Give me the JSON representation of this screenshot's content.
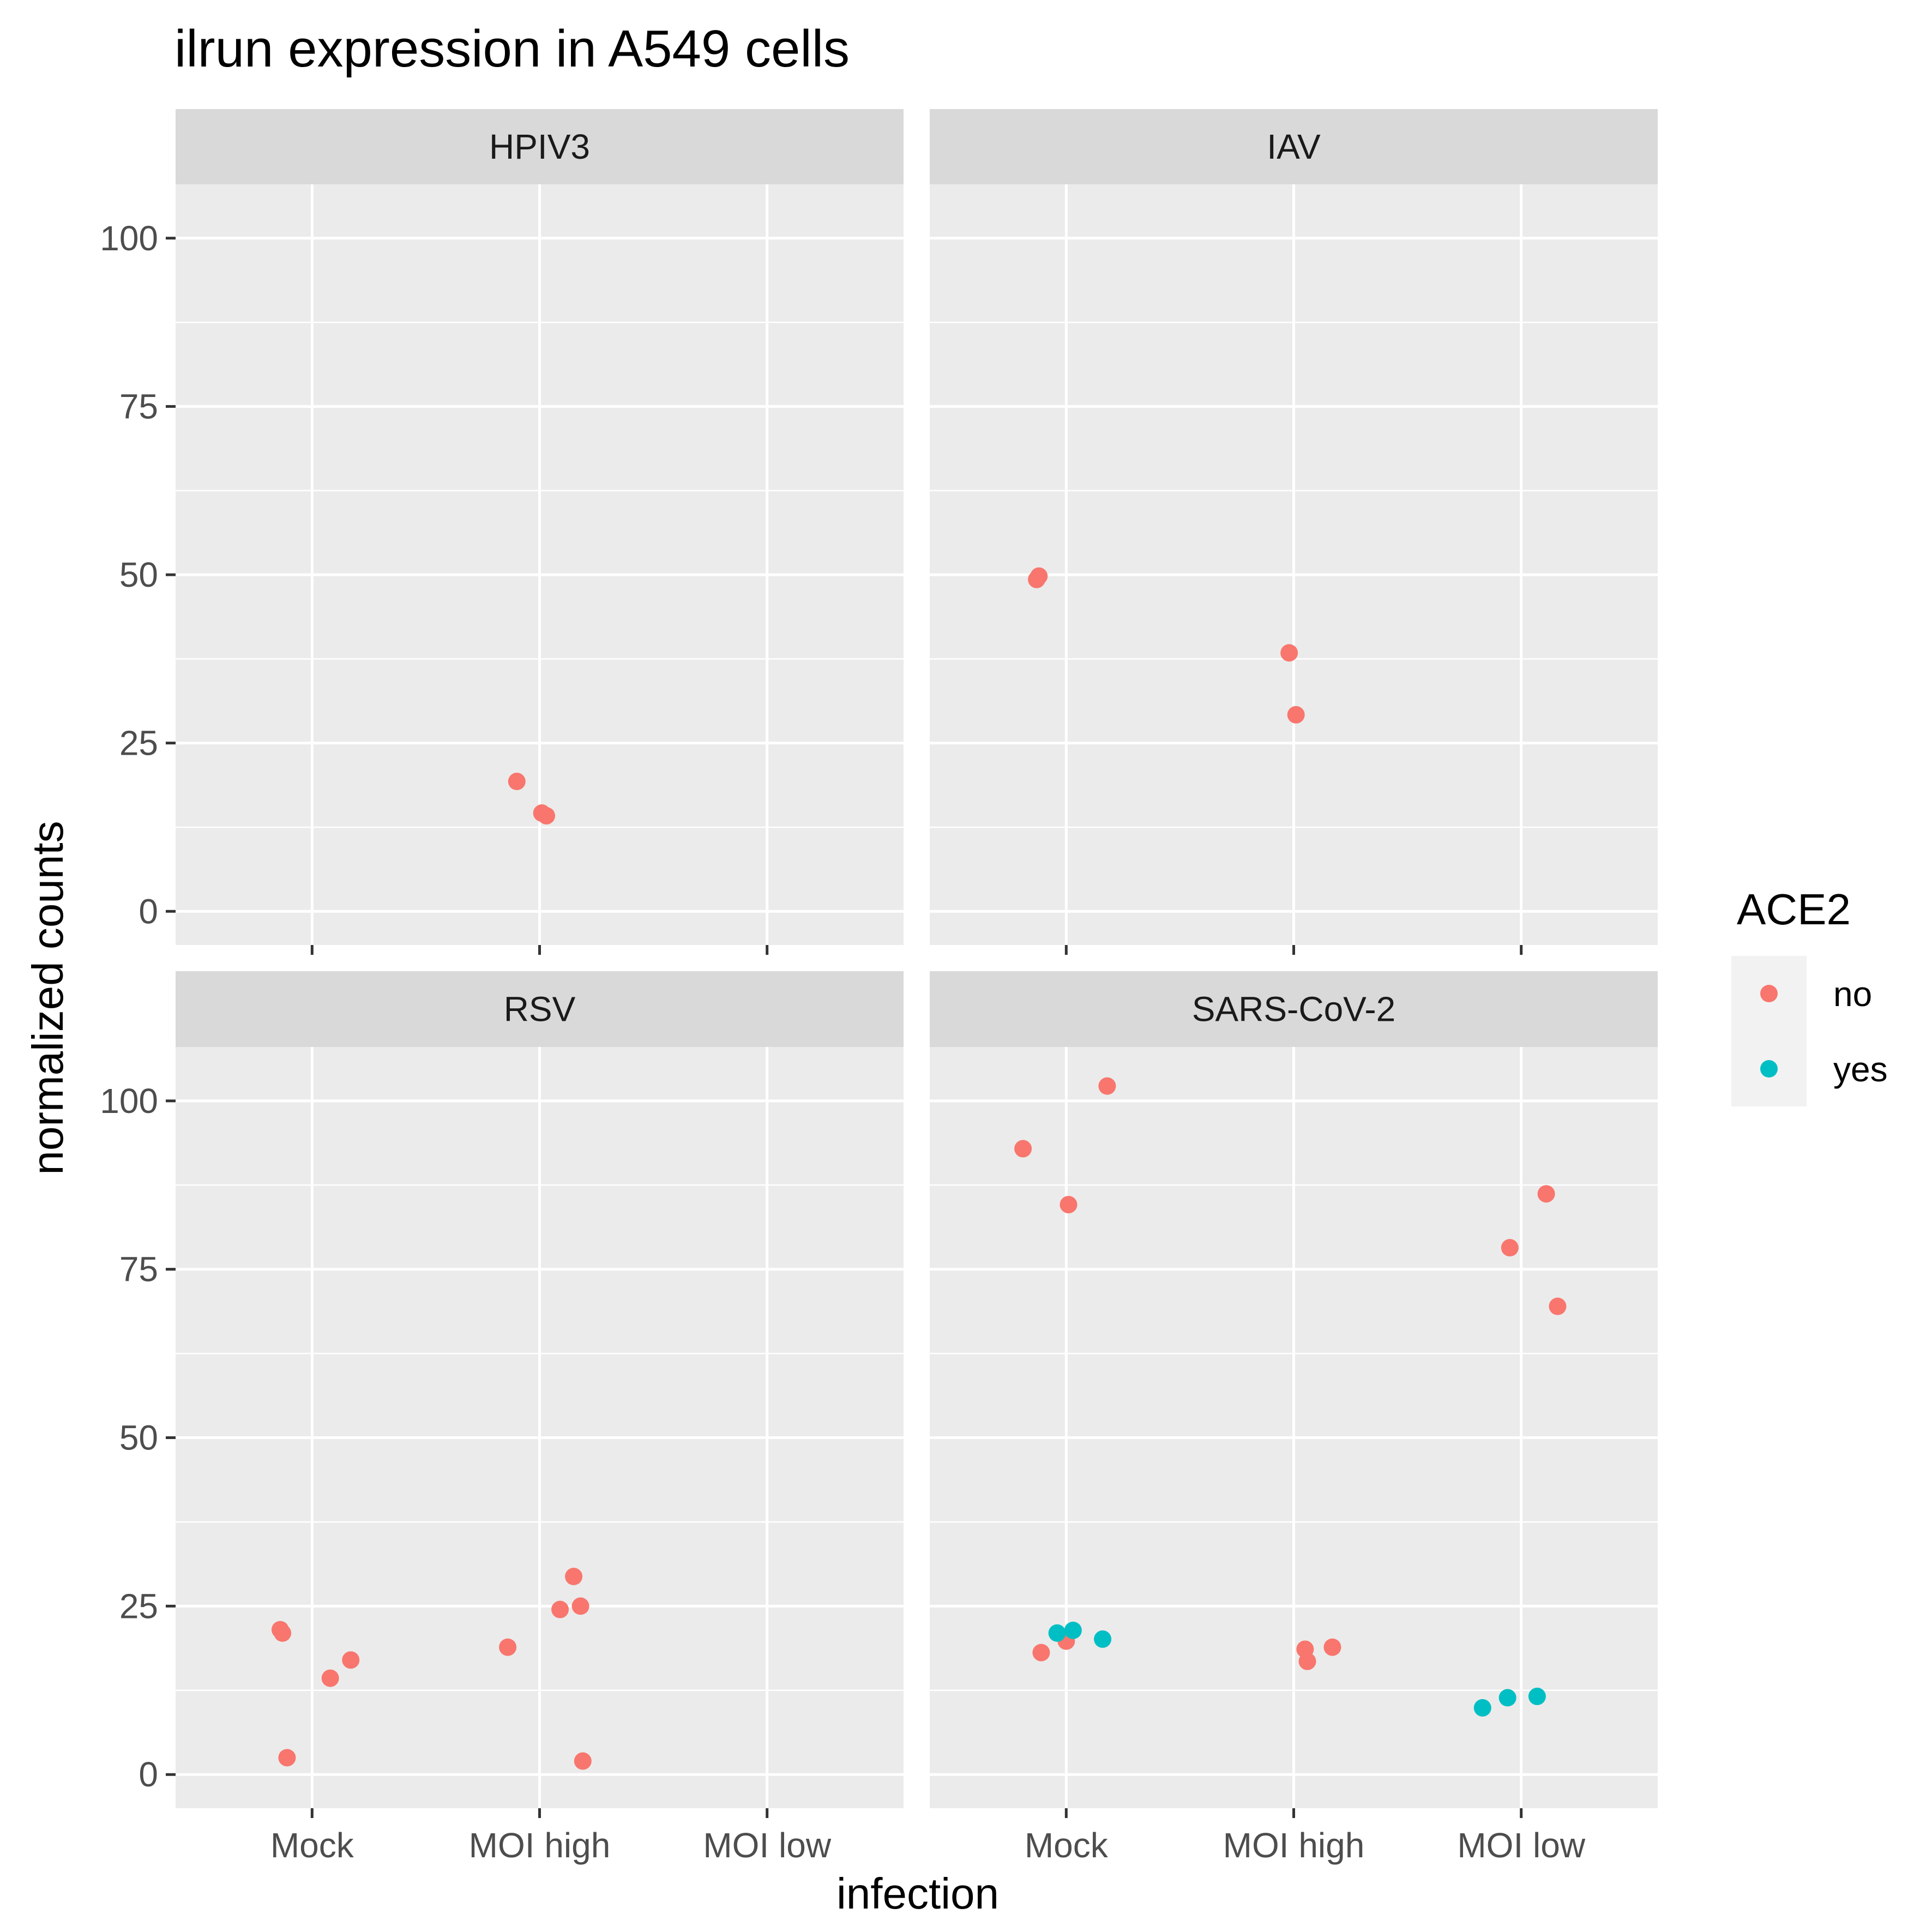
{
  "chart_data": {
    "type": "scatter",
    "title": "ilrun expression in A549 cells",
    "xlabel": "infection",
    "ylabel": "normalized counts",
    "categories": [
      "Mock",
      "MOI high",
      "MOI low"
    ],
    "ylim": [
      -5,
      108
    ],
    "yticks": [
      0,
      25,
      50,
      75,
      100
    ],
    "grid": true,
    "legend": {
      "title": "ACE2",
      "position": "right",
      "entries": [
        {
          "label": "no",
          "color": "#F8766D"
        },
        {
          "label": "yes",
          "color": "#00BFC4"
        }
      ]
    },
    "panels": [
      {
        "name": "HPIV3",
        "points": [
          {
            "x": "MOI high",
            "jitter": -0.1,
            "y": 19.3,
            "ace2": "no"
          },
          {
            "x": "MOI high",
            "jitter": 0.01,
            "y": 14.6,
            "ace2": "no"
          },
          {
            "x": "MOI high",
            "jitter": 0.03,
            "y": 14.2,
            "ace2": "no"
          }
        ]
      },
      {
        "name": "IAV",
        "points": [
          {
            "x": "Mock",
            "jitter": -0.13,
            "y": 49.3,
            "ace2": "no"
          },
          {
            "x": "Mock",
            "jitter": -0.12,
            "y": 49.8,
            "ace2": "no"
          },
          {
            "x": "MOI high",
            "jitter": -0.02,
            "y": 38.4,
            "ace2": "no"
          },
          {
            "x": "MOI high",
            "jitter": 0.01,
            "y": 29.2,
            "ace2": "no"
          }
        ]
      },
      {
        "name": "RSV",
        "points": [
          {
            "x": "Mock",
            "jitter": -0.14,
            "y": 21.5,
            "ace2": "no"
          },
          {
            "x": "Mock",
            "jitter": -0.13,
            "y": 21.0,
            "ace2": "no"
          },
          {
            "x": "Mock",
            "jitter": -0.11,
            "y": 2.5,
            "ace2": "no"
          },
          {
            "x": "Mock",
            "jitter": 0.08,
            "y": 14.3,
            "ace2": "no"
          },
          {
            "x": "Mock",
            "jitter": 0.17,
            "y": 17.0,
            "ace2": "no"
          },
          {
            "x": "MOI high",
            "jitter": -0.14,
            "y": 18.9,
            "ace2": "no"
          },
          {
            "x": "MOI high",
            "jitter": 0.09,
            "y": 24.5,
            "ace2": "no"
          },
          {
            "x": "MOI high",
            "jitter": 0.15,
            "y": 29.4,
            "ace2": "no"
          },
          {
            "x": "MOI high",
            "jitter": 0.18,
            "y": 25.0,
            "ace2": "no"
          },
          {
            "x": "MOI high",
            "jitter": 0.19,
            "y": 2.0,
            "ace2": "no"
          }
        ]
      },
      {
        "name": "SARS-CoV-2",
        "points": [
          {
            "x": "Mock",
            "jitter": -0.19,
            "y": 92.9,
            "ace2": "no"
          },
          {
            "x": "Mock",
            "jitter": 0.01,
            "y": 84.6,
            "ace2": "no"
          },
          {
            "x": "Mock",
            "jitter": 0.18,
            "y": 102.2,
            "ace2": "no"
          },
          {
            "x": "Mock",
            "jitter": -0.11,
            "y": 18.1,
            "ace2": "no"
          },
          {
            "x": "Mock",
            "jitter": 0.0,
            "y": 19.8,
            "ace2": "no"
          },
          {
            "x": "Mock",
            "jitter": -0.04,
            "y": 21.0,
            "ace2": "yes"
          },
          {
            "x": "Mock",
            "jitter": 0.03,
            "y": 21.4,
            "ace2": "yes"
          },
          {
            "x": "Mock",
            "jitter": 0.16,
            "y": 20.1,
            "ace2": "yes"
          },
          {
            "x": "MOI high",
            "jitter": 0.05,
            "y": 18.6,
            "ace2": "no"
          },
          {
            "x": "MOI high",
            "jitter": 0.06,
            "y": 16.8,
            "ace2": "no"
          },
          {
            "x": "MOI high",
            "jitter": 0.17,
            "y": 18.9,
            "ace2": "no"
          },
          {
            "x": "MOI low",
            "jitter": -0.05,
            "y": 78.2,
            "ace2": "no"
          },
          {
            "x": "MOI low",
            "jitter": 0.11,
            "y": 86.2,
            "ace2": "no"
          },
          {
            "x": "MOI low",
            "jitter": 0.16,
            "y": 69.5,
            "ace2": "no"
          },
          {
            "x": "MOI low",
            "jitter": -0.17,
            "y": 9.9,
            "ace2": "yes"
          },
          {
            "x": "MOI low",
            "jitter": -0.06,
            "y": 11.4,
            "ace2": "yes"
          },
          {
            "x": "MOI low",
            "jitter": 0.07,
            "y": 11.6,
            "ace2": "yes"
          }
        ]
      }
    ]
  }
}
